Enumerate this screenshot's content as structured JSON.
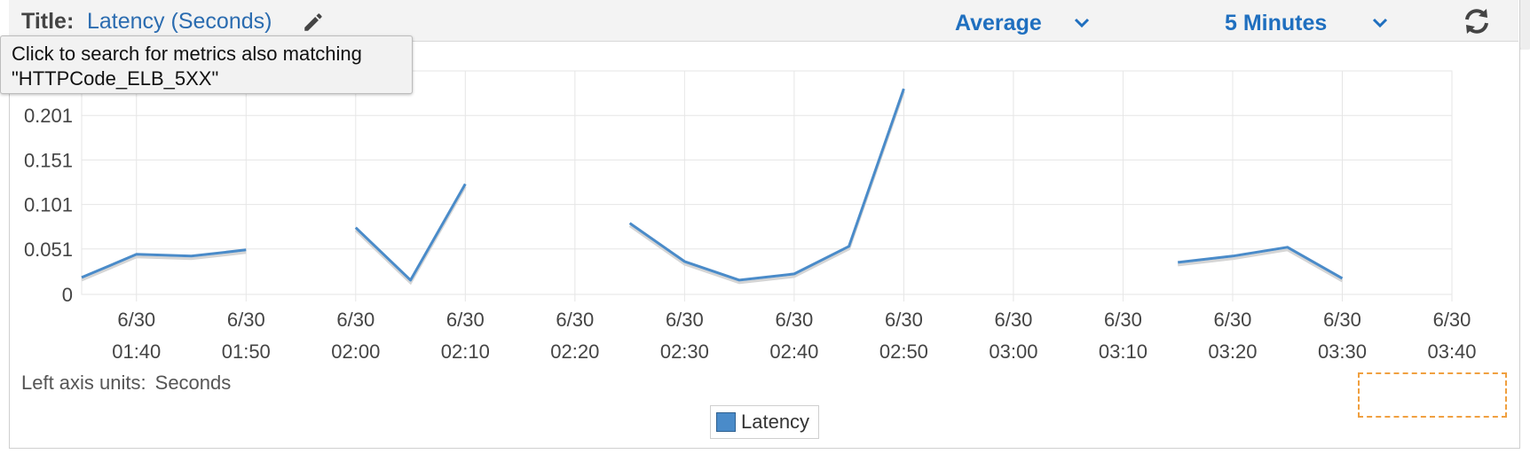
{
  "header": {
    "title_label": "Title:",
    "title_value": "Latency (Seconds)",
    "statistic": "Average",
    "period": "5 Minutes"
  },
  "tooltip": {
    "line1": "Click to search for metrics also matching",
    "line2": "\"HTTPCode_ELB_5XX\""
  },
  "axis_units": {
    "label": "Left axis units:",
    "value": "Seconds"
  },
  "colors": {
    "series": "#4a8bc9",
    "accent": "#1f6fbf",
    "selection": "#f0a040"
  },
  "icons": {
    "edit": "pencil-icon",
    "refresh": "refresh-icon",
    "dropdown": "chevron-down-icon"
  },
  "chart_data": {
    "type": "line",
    "ylim": [
      0,
      0.251
    ],
    "y_ticks": [
      "0",
      "0.051",
      "0.101",
      "0.151",
      "0.201"
    ],
    "y_tick_values": [
      0,
      0.051,
      0.101,
      0.151,
      0.201
    ],
    "x_ticks": [
      [
        "6/30",
        "01:40"
      ],
      [
        "6/30",
        "01:50"
      ],
      [
        "6/30",
        "02:00"
      ],
      [
        "6/30",
        "02:10"
      ],
      [
        "6/30",
        "02:20"
      ],
      [
        "6/30",
        "02:30"
      ],
      [
        "6/30",
        "02:40"
      ],
      [
        "6/30",
        "02:50"
      ],
      [
        "6/30",
        "03:00"
      ],
      [
        "6/30",
        "03:10"
      ],
      [
        "6/30",
        "03:20"
      ],
      [
        "6/30",
        "03:30"
      ],
      [
        "6/30",
        "03:40"
      ]
    ],
    "x_range": [
      "01:35",
      "03:40"
    ],
    "grid": true,
    "legend": "bottom-center",
    "series": [
      {
        "name": "Latency",
        "segments": [
          [
            {
              "x": "01:35",
              "y": 0.019
            },
            {
              "x": "01:40",
              "y": 0.045
            },
            {
              "x": "01:45",
              "y": 0.043
            },
            {
              "x": "01:50",
              "y": 0.05
            }
          ],
          [
            {
              "x": "02:00",
              "y": 0.075
            },
            {
              "x": "02:05",
              "y": 0.016
            },
            {
              "x": "02:10",
              "y": 0.124
            }
          ],
          [
            {
              "x": "02:25",
              "y": 0.08
            },
            {
              "x": "02:30",
              "y": 0.037
            },
            {
              "x": "02:35",
              "y": 0.016
            },
            {
              "x": "02:40",
              "y": 0.023
            },
            {
              "x": "02:45",
              "y": 0.054
            },
            {
              "x": "02:50",
              "y": 0.231
            }
          ],
          [
            {
              "x": "03:15",
              "y": 0.036
            },
            {
              "x": "03:20",
              "y": 0.043
            },
            {
              "x": "03:25",
              "y": 0.053
            },
            {
              "x": "03:30",
              "y": 0.018
            }
          ]
        ]
      }
    ]
  }
}
